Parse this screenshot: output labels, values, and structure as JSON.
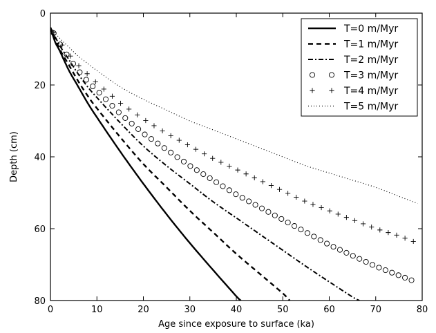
{
  "chart_data": {
    "type": "line",
    "title": "",
    "xlabel": "Age since exposure to surface (ka)",
    "ylabel": "Depth (cm)",
    "xlim": [
      0,
      80
    ],
    "ylim": [
      80,
      0
    ],
    "y_inverted": true,
    "x_ticks": [
      "0",
      "10",
      "20",
      "30",
      "40",
      "50",
      "60",
      "70",
      "80"
    ],
    "y_ticks": [
      "0",
      "20",
      "40",
      "60",
      "80"
    ],
    "grid": false,
    "legend_position": "top-right",
    "series": [
      {
        "name": "T=0 m/Myr",
        "style": "solid",
        "x": [
          0,
          1,
          2,
          4,
          6,
          8,
          10,
          15,
          20,
          25,
          30,
          35,
          40,
          41
        ],
        "y": [
          4,
          8,
          10.5,
          16,
          20.5,
          25,
          29,
          38.5,
          47.5,
          56,
          64,
          71.5,
          78.8,
          80
        ]
      },
      {
        "name": "T=1 m/Myr",
        "style": "dashed",
        "x": [
          0,
          2,
          4,
          6,
          8,
          10,
          15,
          20,
          25,
          30,
          35,
          40,
          45,
          50,
          51.5
        ],
        "y": [
          4,
          10,
          14.5,
          19,
          23,
          26.5,
          34.5,
          42,
          48.5,
          55,
          61,
          67,
          72.5,
          78,
          80
        ]
      },
      {
        "name": "T=2 m/Myr",
        "style": "dashdot",
        "x": [
          0,
          2,
          4,
          6,
          8,
          10,
          15,
          20,
          25,
          30,
          35,
          40,
          45,
          50,
          55,
          60,
          65,
          66.5
        ],
        "y": [
          4,
          9,
          13,
          17,
          20.5,
          23.5,
          30.5,
          37,
          42.5,
          47.5,
          52.5,
          57,
          61.5,
          66,
          70.5,
          74.8,
          79,
          80
        ]
      },
      {
        "name": "T=3 m/Myr",
        "style": "circles",
        "x": [
          0,
          2,
          4,
          6,
          8,
          10,
          15,
          20,
          25,
          30,
          35,
          40,
          45,
          50,
          55,
          60,
          65,
          70,
          75,
          79
        ],
        "y": [
          4,
          8.5,
          12.5,
          16,
          19,
          21.5,
          28,
          33.5,
          38,
          42.5,
          46.5,
          50.5,
          54,
          57.5,
          61,
          64.5,
          67.5,
          70.5,
          73,
          75
        ]
      },
      {
        "name": "T=4 m/Myr",
        "style": "plus",
        "x": [
          0,
          2,
          4,
          6,
          8,
          10,
          15,
          20,
          25,
          30,
          35,
          40,
          45,
          50,
          55,
          60,
          65,
          70,
          75,
          79
        ],
        "y": [
          4,
          8,
          11.5,
          14.5,
          17,
          19.5,
          25,
          29.5,
          33.5,
          37,
          40.5,
          43.5,
          46.5,
          49.5,
          52.5,
          55,
          57.5,
          60,
          62,
          64
        ]
      },
      {
        "name": "T=5 m/Myr",
        "style": "dotted",
        "x": [
          0,
          2,
          4,
          6,
          8,
          10,
          15,
          20,
          25,
          30,
          35,
          40,
          45,
          50,
          55,
          60,
          65,
          70,
          75,
          79
        ],
        "y": [
          4,
          7,
          9.5,
          12,
          14,
          16,
          20.5,
          24,
          27,
          30,
          32.5,
          35,
          37.5,
          40,
          42.5,
          44.5,
          46.5,
          48.5,
          51,
          53
        ]
      }
    ]
  }
}
